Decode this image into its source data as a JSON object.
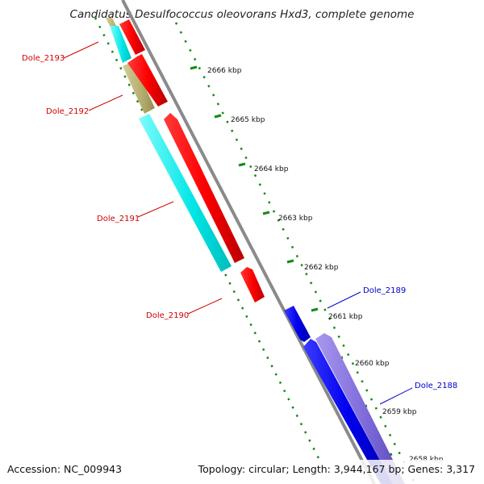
{
  "title": "Candidatus Desulfococcus oleovorans Hxd3, complete genome",
  "footer": {
    "accession": "Accession: NC_009943",
    "topology": "Topology: circular; Length: 3,944,167 bp; Genes: 3,317"
  },
  "ticks": [
    "2666 kbp",
    "2665 kbp",
    "2664 kbp",
    "2663 kbp",
    "2662 kbp",
    "2661 kbp",
    "2660 kbp",
    "2659 kbp",
    "2658 kbp"
  ],
  "genes": [
    {
      "label": "Dole_2193",
      "color_hex": "#d00000"
    },
    {
      "label": "Dole_2192",
      "color_hex": "#d00000"
    },
    {
      "label": "Dole_2191",
      "color_hex": "#d00000"
    },
    {
      "label": "Dole_2190",
      "color_hex": "#d00000"
    },
    {
      "label": "Dole_2189",
      "color_hex": "#0000cc"
    },
    {
      "label": "Dole_2188",
      "color_hex": "#0000cc"
    }
  ],
  "colors": {
    "cds_forward": "#ff0000",
    "cds_reverse": "#0000ee",
    "orf_cyan": "#00e5e5",
    "orf_olive": "#b5ad6e",
    "orf_purple": "#7b68d8",
    "backbone": "#808080",
    "tick_green": "#138a13"
  }
}
